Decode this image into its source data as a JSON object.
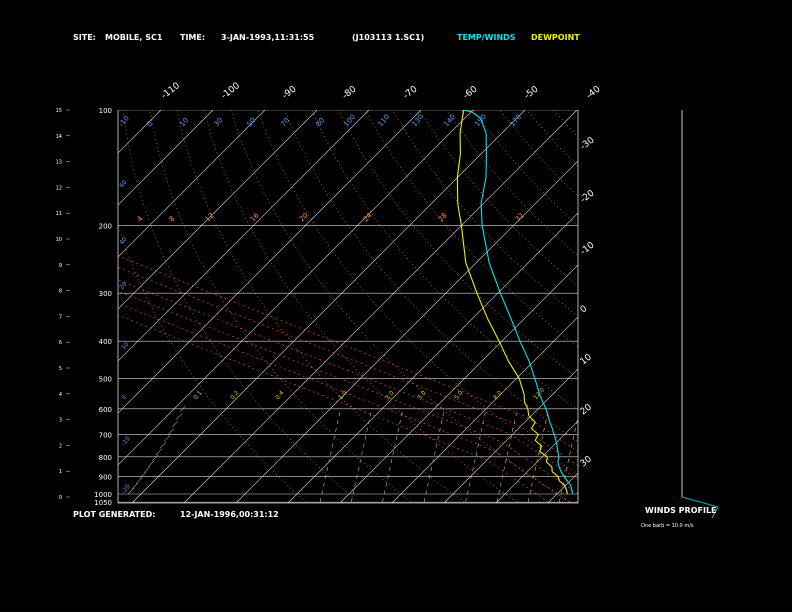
{
  "header": {
    "site_label": "SITE:",
    "site_value": "MOBILE, SC1",
    "time_label": "TIME:",
    "time_value": "3-JAN-1993,11:31:55",
    "file_id": "(J103113 1.SC1)",
    "legend_temp": "TEMP/WINDS",
    "legend_dew": "DEWPOINT"
  },
  "footer": {
    "generated_label": "PLOT GENERATED:",
    "generated_value": "12-JAN-1996,00:31:12",
    "winds_profile": "WINDS PROFILE",
    "barb_note": "One barb = 10.0 m/s"
  },
  "colors": {
    "background": "#000000",
    "temp_line": "#00e5ee",
    "dewpoint_line": "#f0f000",
    "grid": "#d8d8d8",
    "isotherm": "#e8e8e8",
    "dry_adiabat": "#ff8c40",
    "moist_adiabat": "#ff5050",
    "mixing_ratio": "#e8c020",
    "label_blue": "#4aa0ff"
  },
  "chart_data": {
    "type": "line",
    "subtype": "skew-T log-P diagram",
    "y_scale": "log-pressure",
    "pressure_levels": [
      "100",
      "200",
      "300",
      "400",
      "500",
      "600",
      "700",
      "800",
      "900",
      "1000",
      "1050"
    ],
    "height_ticks": [
      "0",
      "1",
      "2",
      "3",
      "4",
      "5",
      "6",
      "7",
      "8",
      "9",
      "10",
      "11",
      "12",
      "13",
      "14",
      "15"
    ],
    "top_temp_labels": [
      "-110",
      "-100",
      "-90",
      "-80",
      "-70",
      "-60",
      "-50",
      "-40"
    ],
    "right_temp_labels": [
      "-30",
      "-20",
      "-10",
      "0",
      "10",
      "20",
      "30"
    ],
    "mixing_ratio_labels": [
      "0.1",
      "0.2",
      "0.4",
      "1.0",
      "2.0",
      "3.0",
      "5.0",
      "8.0",
      "12.0"
    ],
    "dry_adiabat_labels": [
      "-10",
      "0",
      "10",
      "30",
      "50",
      "70",
      "80",
      "100",
      "110",
      "130",
      "140",
      "150",
      "170"
    ],
    "potential_temp_labels": [
      "4",
      "8",
      "12",
      "16",
      "20",
      "24",
      "28",
      "32"
    ],
    "series": [
      {
        "name": "TEMP/WINDS",
        "color": "#00e5ee",
        "points": [
          [
            1000,
            13.0
          ],
          [
            975,
            12.0
          ],
          [
            950,
            11.0
          ],
          [
            925,
            9.5
          ],
          [
            900,
            8.0
          ],
          [
            875,
            6.5
          ],
          [
            850,
            5.2
          ],
          [
            825,
            4.0
          ],
          [
            800,
            3.2
          ],
          [
            775,
            2.0
          ],
          [
            750,
            0.8
          ],
          [
            725,
            -0.5
          ],
          [
            700,
            -2.0
          ],
          [
            675,
            -3.5
          ],
          [
            650,
            -5.2
          ],
          [
            625,
            -6.8
          ],
          [
            600,
            -8.5
          ],
          [
            575,
            -10.5
          ],
          [
            550,
            -12.5
          ],
          [
            500,
            -16.5
          ],
          [
            450,
            -21.0
          ],
          [
            400,
            -26.5
          ],
          [
            350,
            -32.5
          ],
          [
            300,
            -39.5
          ],
          [
            250,
            -47.5
          ],
          [
            200,
            -56.0
          ],
          [
            175,
            -60.5
          ],
          [
            150,
            -64.5
          ],
          [
            130,
            -69.0
          ],
          [
            115,
            -73.0
          ],
          [
            105,
            -77.0
          ],
          [
            101,
            -80.0
          ],
          [
            100,
            -82.0
          ]
        ]
      },
      {
        "name": "DEWPOINT",
        "color": "#f0f000",
        "points": [
          [
            1000,
            12.0
          ],
          [
            975,
            11.0
          ],
          [
            950,
            9.8
          ],
          [
            925,
            8.0
          ],
          [
            900,
            6.8
          ],
          [
            875,
            4.8
          ],
          [
            850,
            3.8
          ],
          [
            825,
            1.8
          ],
          [
            800,
            1.0
          ],
          [
            775,
            -1.5
          ],
          [
            750,
            -2.2
          ],
          [
            725,
            -4.5
          ],
          [
            700,
            -5.0
          ],
          [
            675,
            -7.5
          ],
          [
            650,
            -8.0
          ],
          [
            625,
            -10.5
          ],
          [
            600,
            -12.0
          ],
          [
            575,
            -14.0
          ],
          [
            550,
            -15.5
          ],
          [
            500,
            -19.5
          ],
          [
            450,
            -25.0
          ],
          [
            400,
            -30.5
          ],
          [
            350,
            -37.0
          ],
          [
            300,
            -44.0
          ],
          [
            250,
            -52.0
          ],
          [
            200,
            -60.0
          ],
          [
            175,
            -65.0
          ],
          [
            150,
            -70.0
          ],
          [
            130,
            -74.0
          ],
          [
            115,
            -78.0
          ],
          [
            105,
            -80.5
          ],
          [
            101,
            -81.5
          ],
          [
            100,
            -82.0
          ]
        ]
      }
    ]
  }
}
